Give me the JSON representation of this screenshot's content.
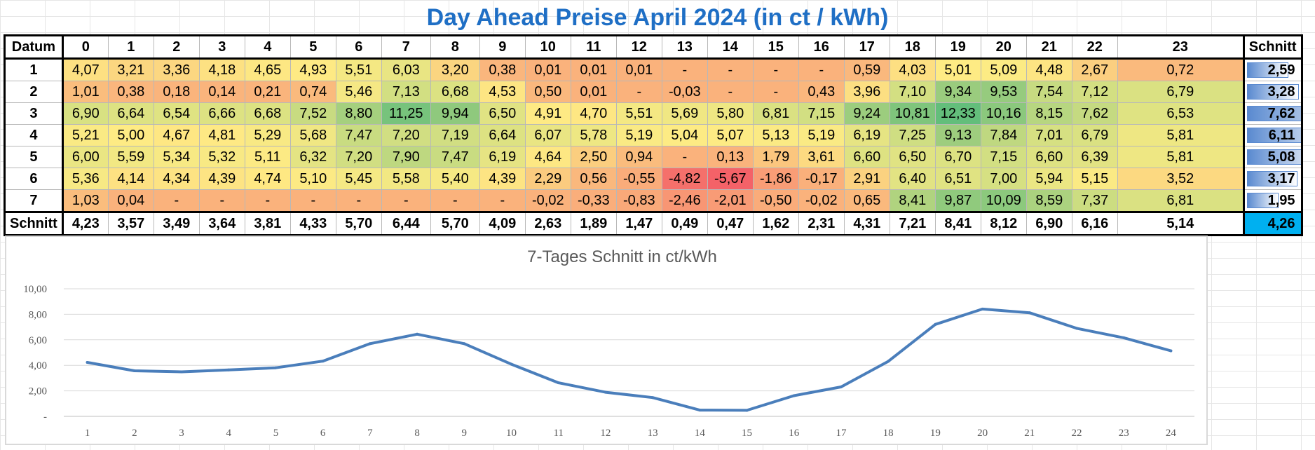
{
  "title": "Day Ahead Preise April 2024 (in ct / kWh)",
  "table": {
    "corner": "Datum",
    "hours": [
      "0",
      "1",
      "2",
      "3",
      "4",
      "5",
      "6",
      "7",
      "8",
      "9",
      "10",
      "11",
      "12",
      "13",
      "14",
      "15",
      "16",
      "17",
      "18",
      "19",
      "20",
      "21",
      "22",
      "23"
    ],
    "avg_header": "Schnitt",
    "rows": [
      {
        "label": "1",
        "cells": [
          "4,07",
          "3,21",
          "3,36",
          "4,18",
          "4,65",
          "4,93",
          "5,51",
          "6,03",
          "3,20",
          "0,38",
          "0,01",
          "0,01",
          "0,01",
          "-",
          "-",
          "-",
          "-",
          "0,59",
          "4,03",
          "5,01",
          "5,09",
          "4,48",
          "2,67",
          "0,72"
        ],
        "avg": "2,59"
      },
      {
        "label": "2",
        "cells": [
          "1,01",
          "0,38",
          "0,18",
          "0,14",
          "0,21",
          "0,74",
          "5,46",
          "7,13",
          "6,68",
          "4,53",
          "0,50",
          "0,01",
          "-",
          "-0,03",
          "-",
          "-",
          "0,43",
          "3,96",
          "7,10",
          "9,34",
          "9,53",
          "7,54",
          "7,12",
          "6,79"
        ],
        "avg": "3,28"
      },
      {
        "label": "3",
        "cells": [
          "6,90",
          "6,64",
          "6,54",
          "6,66",
          "6,68",
          "7,52",
          "8,80",
          "11,25",
          "9,94",
          "6,50",
          "4,91",
          "4,70",
          "5,51",
          "5,69",
          "5,80",
          "6,81",
          "7,15",
          "9,24",
          "10,81",
          "12,33",
          "10,16",
          "8,15",
          "7,62",
          "6,53"
        ],
        "avg": "7,62"
      },
      {
        "label": "4",
        "cells": [
          "5,21",
          "5,00",
          "4,67",
          "4,81",
          "5,29",
          "5,68",
          "7,47",
          "7,20",
          "7,19",
          "6,64",
          "6,07",
          "5,78",
          "5,19",
          "5,04",
          "5,07",
          "5,13",
          "5,19",
          "6,19",
          "7,25",
          "9,13",
          "7,84",
          "7,01",
          "6,79",
          "5,81"
        ],
        "avg": "6,11"
      },
      {
        "label": "5",
        "cells": [
          "6,00",
          "5,59",
          "5,34",
          "5,32",
          "5,11",
          "6,32",
          "7,20",
          "7,90",
          "7,47",
          "6,19",
          "4,64",
          "2,50",
          "0,94",
          "-",
          "0,13",
          "1,79",
          "3,61",
          "6,60",
          "6,50",
          "6,70",
          "7,15",
          "6,60",
          "6,39",
          "5,81"
        ],
        "avg": "5,08"
      },
      {
        "label": "6",
        "cells": [
          "5,36",
          "4,14",
          "4,34",
          "4,39",
          "4,74",
          "5,10",
          "5,45",
          "5,58",
          "5,40",
          "4,39",
          "2,29",
          "0,56",
          "-0,55",
          "-4,82",
          "-5,67",
          "-1,86",
          "-0,17",
          "2,91",
          "6,40",
          "6,51",
          "7,00",
          "5,94",
          "5,15",
          "3,52"
        ],
        "avg": "3,17"
      },
      {
        "label": "7",
        "cells": [
          "1,03",
          "0,04",
          "-",
          "-",
          "-",
          "-",
          "-",
          "-",
          "-",
          "-",
          "-0,02",
          "-0,33",
          "-0,83",
          "-2,46",
          "-2,01",
          "-0,50",
          "-0,02",
          "0,65",
          "8,41",
          "9,87",
          "10,09",
          "8,59",
          "7,37",
          "6,81"
        ],
        "avg": "1,95"
      }
    ],
    "footer": {
      "label": "Schnitt",
      "cells": [
        "4,23",
        "3,57",
        "3,49",
        "3,64",
        "3,81",
        "4,33",
        "5,70",
        "6,44",
        "5,70",
        "4,09",
        "2,63",
        "1,89",
        "1,47",
        "0,49",
        "0,47",
        "1,62",
        "2,31",
        "4,31",
        "7,21",
        "8,41",
        "8,12",
        "6,90",
        "6,16",
        "5,14"
      ],
      "avg": "4,26"
    }
  },
  "chart_data": {
    "type": "line",
    "title": "7-Tages Schnitt in ct/kWh",
    "x": [
      1,
      2,
      3,
      4,
      5,
      6,
      7,
      8,
      9,
      10,
      11,
      12,
      13,
      14,
      15,
      16,
      17,
      18,
      19,
      20,
      21,
      22,
      23,
      24
    ],
    "series": [
      {
        "values": [
          4.23,
          3.57,
          3.49,
          3.64,
          3.81,
          4.33,
          5.7,
          6.44,
          5.7,
          4.09,
          2.63,
          1.89,
          1.47,
          0.49,
          0.47,
          1.62,
          2.31,
          4.31,
          7.21,
          8.41,
          8.12,
          6.9,
          6.16,
          5.14
        ],
        "color": "#4a7ebb"
      }
    ],
    "ylim": [
      0,
      10
    ],
    "yticks": [
      "-",
      "2,00",
      "4,00",
      "6,00",
      "8,00",
      "10,00"
    ],
    "xticks": [
      "1",
      "2",
      "3",
      "4",
      "5",
      "6",
      "7",
      "8",
      "9",
      "10",
      "11",
      "12",
      "13",
      "14",
      "15",
      "16",
      "17",
      "18",
      "19",
      "20",
      "21",
      "22",
      "23",
      "24"
    ],
    "grid": true,
    "xlabel": "",
    "ylabel": ""
  }
}
